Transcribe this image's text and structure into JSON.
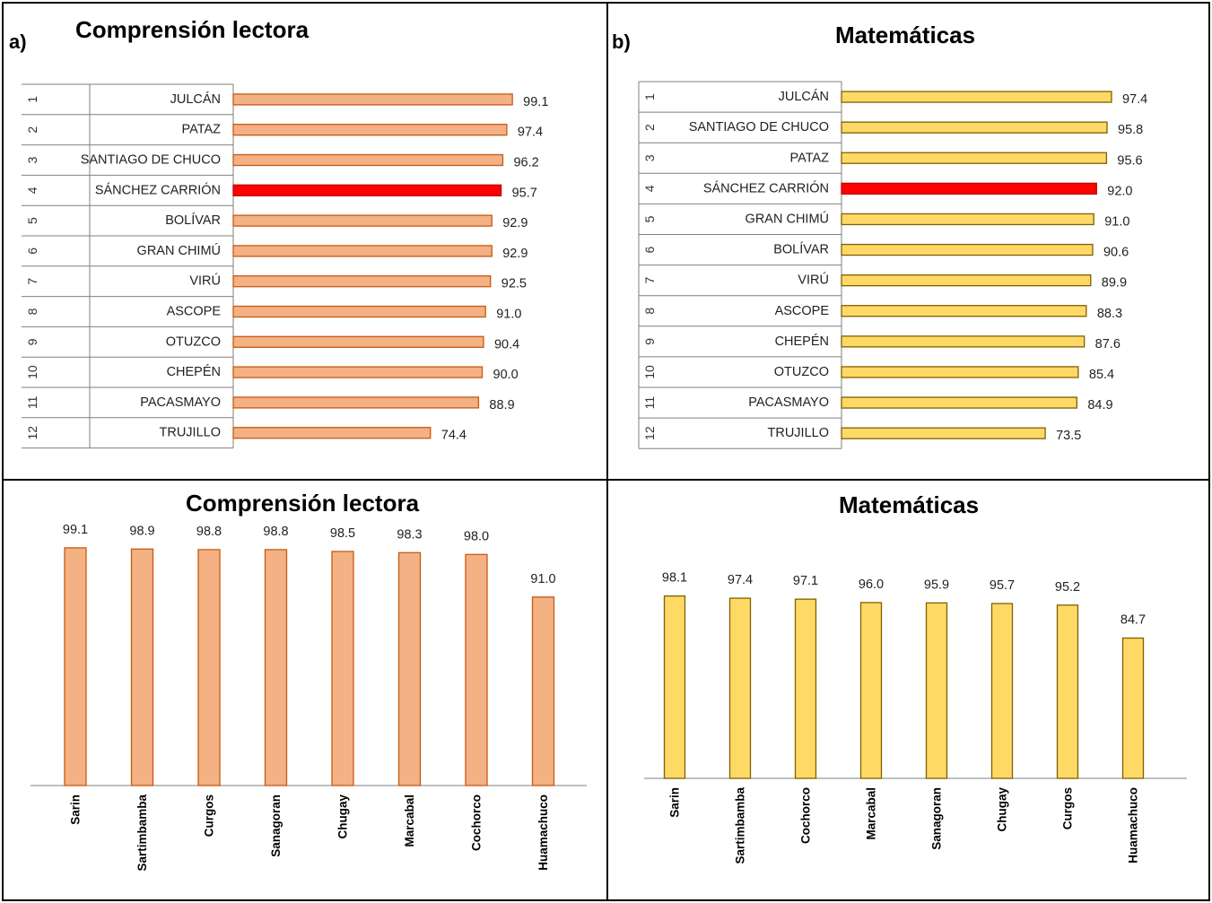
{
  "colors": {
    "reading_fill": "#f4b183",
    "reading_stroke": "#c55a11",
    "math_fill": "#ffd966",
    "math_stroke": "#7f6000",
    "highlight_fill": "#ff0000",
    "highlight_stroke": "#c00000"
  },
  "panels": {
    "a": {
      "letter": "a)",
      "title": "Comprensión lectora"
    },
    "b": {
      "letter": "b)",
      "title": "Matemáticas"
    },
    "c": {
      "title": "Comprensión lectora"
    },
    "d": {
      "title": "Matemáticas"
    }
  },
  "chart_data": [
    {
      "type": "bar",
      "orientation": "horizontal",
      "ranks": [
        "1",
        "2",
        "3",
        "4",
        "5",
        "6",
        "7",
        "8",
        "9",
        "10",
        "11",
        "12"
      ],
      "categories": [
        "JULCÁN",
        "PATAZ",
        "SANTIAGO DE CHUCO",
        "SÁNCHEZ CARRIÓN",
        "BOLÍVAR",
        "GRAN CHIMÚ",
        "VIRÚ",
        "ASCOPE",
        "OTUZCO",
        "CHEPÉN",
        "PACASMAYO",
        "TRUJILLO"
      ],
      "values": [
        99.1,
        97.4,
        96.2,
        95.7,
        92.9,
        92.9,
        92.5,
        91.0,
        90.4,
        90.0,
        88.9,
        74.4
      ],
      "value_labels": [
        "99.1",
        "97.4",
        "96.2",
        "95.7",
        "92.9",
        "92.9",
        "92.5",
        "91.0",
        "90.4",
        "90.0",
        "88.9",
        "74.4"
      ],
      "highlight": "SÁNCHEZ CARRIÓN"
    },
    {
      "type": "bar",
      "orientation": "horizontal",
      "ranks": [
        "1",
        "2",
        "3",
        "4",
        "5",
        "6",
        "7",
        "8",
        "9",
        "10",
        "11",
        "12"
      ],
      "categories": [
        "JULCÁN",
        "SANTIAGO DE CHUCO",
        "PATAZ",
        "SÁNCHEZ CARRIÓN",
        "GRAN CHIMÚ",
        "BOLÍVAR",
        "VIRÚ",
        "ASCOPE",
        "CHEPÉN",
        "OTUZCO",
        "PACASMAYO",
        "TRUJILLO"
      ],
      "values": [
        97.4,
        95.8,
        95.6,
        92.0,
        91.0,
        90.6,
        89.9,
        88.3,
        87.6,
        85.4,
        84.9,
        73.5
      ],
      "value_labels": [
        "97.4",
        "95.8",
        "95.6",
        "92.0",
        "91.0",
        "90.6",
        "89.9",
        "88.3",
        "87.6",
        "85.4",
        "84.9",
        "73.5"
      ],
      "highlight": "SÁNCHEZ CARRIÓN"
    },
    {
      "type": "bar",
      "orientation": "vertical",
      "categories": [
        "Sarin",
        "Sartimbamba",
        "Curgos",
        "Sanagoran",
        "Chugay",
        "Marcabal",
        "Cochorco",
        "Huamachuco"
      ],
      "values": [
        99.1,
        98.9,
        98.8,
        98.8,
        98.5,
        98.3,
        98.0,
        91.0
      ],
      "value_labels": [
        "99.1",
        "98.9",
        "98.8",
        "98.8",
        "98.5",
        "98.3",
        "98.0",
        "91.0"
      ]
    },
    {
      "type": "bar",
      "orientation": "vertical",
      "categories": [
        "Sarin",
        "Sartimbamba",
        "Cochorco",
        "Marcabal",
        "Sanagoran",
        "Chugay",
        "Curgos",
        "Huamachuco"
      ],
      "values": [
        98.1,
        97.4,
        97.1,
        96.0,
        95.9,
        95.7,
        95.2,
        84.7
      ],
      "value_labels": [
        "98.1",
        "97.4",
        "97.1",
        "96.0",
        "95.9",
        "95.7",
        "95.2",
        "84.7"
      ]
    }
  ]
}
